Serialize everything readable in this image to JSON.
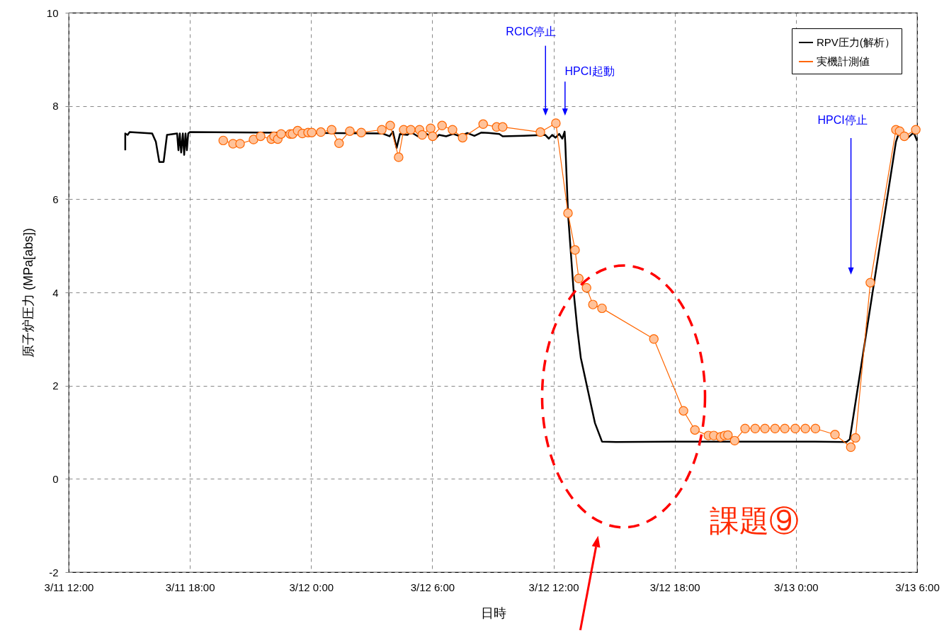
{
  "chart_data": {
    "type": "line",
    "xlabel": "日時",
    "ylabel": "原子炉圧力 (MPa[abs])",
    "xlim": [
      "--03-11T12:00",
      "--03-13T06:00"
    ],
    "xticks": [
      {
        "value": "--03-11T12:00",
        "label": "3/11 12:00"
      },
      {
        "value": "--03-11T18:00",
        "label": "3/11 18:00"
      },
      {
        "value": "--03-12T00:00",
        "label": "3/12 0:00"
      },
      {
        "value": "--03-12T06:00",
        "label": "3/12 6:00"
      },
      {
        "value": "--03-12T12:00",
        "label": "3/12 12:00"
      },
      {
        "value": "--03-12T18:00",
        "label": "3/12 18:00"
      },
      {
        "value": "--03-13T00:00",
        "label": "3/13 0:00"
      },
      {
        "value": "--03-13T06:00",
        "label": "3/13 6:00"
      }
    ],
    "ylim": [
      -2,
      10
    ],
    "yticks": [
      -2,
      0,
      2,
      4,
      6,
      8,
      10
    ],
    "grid": true,
    "legend": "top right",
    "series": [
      {
        "name": "RPV圧力(解析）",
        "color": "#000000",
        "marker": "none",
        "x": [
          "--03-11T14:48",
          "--03-11T14:48",
          "--03-11T14:55",
          "--03-11T15:01",
          "--03-11T16:08",
          "--03-11T16:19",
          "--03-11T16:29",
          "--03-11T16:42",
          "--03-11T16:52",
          "--03-11T17:22",
          "--03-11T17:26",
          "--03-11T17:30",
          "--03-11T17:34",
          "--03-11T17:39",
          "--03-11T17:43",
          "--03-11T17:47",
          "--03-11T17:51",
          "--03-11T17:55",
          "--03-11T18:00",
          "--03-12T03:32",
          "--03-12T03:53",
          "--03-12T04:03",
          "--03-12T04:14",
          "--03-12T04:24",
          "--03-12T04:46",
          "--03-12T04:56",
          "--03-12T05:17",
          "--03-12T05:38",
          "--03-12T06:09",
          "--03-12T06:20",
          "--03-12T06:41",
          "--03-12T07:02",
          "--03-12T07:23",
          "--03-12T07:44",
          "--03-12T08:05",
          "--03-12T08:26",
          "--03-12T08:47",
          "--03-12T09:19",
          "--03-12T09:29",
          "--03-12T10:32",
          "--03-12T11:35",
          "--03-12T11:46",
          "--03-12T11:56",
          "--03-12T12:06",
          "--03-12T12:17",
          "--03-12T12:26",
          "--03-12T12:33",
          "--03-12T12:35",
          "--03-12T12:43",
          "--03-12T13:00",
          "--03-12T13:11",
          "--03-12T13:21",
          "--03-12T13:42",
          "--03-12T14:03",
          "--03-12T14:24",
          "--03-12T15:06",
          "--03-12T17:55",
          "--03-12T21:25",
          "--03-13T00:55",
          "--03-13T02:30",
          "--03-13T02:40",
          "--03-13T04:57",
          "--03-13T05:04",
          "--03-13T05:18",
          "--03-13T05:33",
          "--03-13T05:50",
          "--03-13T06:00"
        ],
        "values": [
          7.05,
          7.41,
          7.38,
          7.44,
          7.41,
          7.23,
          6.8,
          6.8,
          7.38,
          7.41,
          7.05,
          7.41,
          7.0,
          7.41,
          6.95,
          7.41,
          7.05,
          7.41,
          7.44,
          7.41,
          7.35,
          7.45,
          7.1,
          7.4,
          7.38,
          7.44,
          7.35,
          7.42,
          7.3,
          7.38,
          7.35,
          7.4,
          7.35,
          7.42,
          7.36,
          7.43,
          7.42,
          7.4,
          7.35,
          7.36,
          7.38,
          7.3,
          7.38,
          7.32,
          7.4,
          7.3,
          7.45,
          7.2,
          5.7,
          4.0,
          3.2,
          2.6,
          1.9,
          1.2,
          0.8,
          0.79,
          0.8,
          0.8,
          0.8,
          0.79,
          0.85,
          7.23,
          7.38,
          7.45,
          7.32,
          7.43,
          7.25
        ]
      },
      {
        "name": "実機計測値",
        "color": "#ff6600",
        "marker": "circle",
        "x": [
          "--03-11T19:39",
          "--03-11T20:08",
          "--03-11T20:29",
          "--03-11T21:09",
          "--03-11T21:30",
          "--03-11T22:02",
          "--03-11T22:10",
          "--03-11T22:21",
          "--03-11T22:31",
          "--03-11T22:58",
          "--03-11T23:05",
          "--03-11T23:20",
          "--03-11T23:34",
          "--03-11T23:51",
          "--03-12T00:02",
          "--03-12T00:29",
          "--03-12T01:01",
          "--03-12T01:23",
          "--03-12T01:55",
          "--03-12T02:29",
          "--03-12T03:30",
          "--03-12T03:55",
          "--03-12T04:20",
          "--03-12T04:35",
          "--03-12T04:56",
          "--03-12T05:22",
          "--03-12T05:30",
          "--03-12T05:55",
          "--03-12T06:01",
          "--03-12T06:29",
          "--03-12T07:00",
          "--03-12T07:30",
          "--03-12T08:31",
          "--03-12T09:11",
          "--03-12T09:29",
          "--03-12T11:21",
          "--03-12T12:07",
          "--03-12T12:43",
          "--03-12T13:04",
          "--03-12T13:15",
          "--03-12T13:38",
          "--03-12T13:57",
          "--03-12T14:24",
          "--03-12T16:58",
          "--03-12T18:26",
          "--03-12T19:00",
          "--03-12T19:40",
          "--03-12T19:56",
          "--03-12T20:16",
          "--03-12T20:28",
          "--03-12T20:38",
          "--03-12T20:58",
          "--03-12T21:29",
          "--03-12T21:59",
          "--03-12T22:28",
          "--03-12T22:58",
          "--03-12T23:27",
          "--03-12T23:58",
          "--03-13T00:28",
          "--03-13T00:58",
          "--03-13T01:56",
          "--03-13T02:43",
          "--03-13T02:57",
          "--03-13T03:41",
          "--03-13T04:57",
          "--03-13T05:08",
          "--03-13T05:22",
          "--03-13T05:56"
        ],
        "values": [
          7.26,
          7.19,
          7.19,
          7.28,
          7.35,
          7.29,
          7.35,
          7.29,
          7.4,
          7.4,
          7.4,
          7.47,
          7.41,
          7.43,
          7.43,
          7.44,
          7.49,
          7.2,
          7.46,
          7.43,
          7.49,
          7.58,
          6.9,
          7.49,
          7.49,
          7.49,
          7.38,
          7.52,
          7.35,
          7.58,
          7.49,
          7.32,
          7.61,
          7.55,
          7.55,
          7.44,
          7.63,
          5.7,
          4.91,
          4.3,
          4.1,
          3.74,
          3.66,
          3.0,
          1.46,
          1.05,
          0.93,
          0.93,
          0.9,
          0.93,
          0.94,
          0.82,
          1.08,
          1.08,
          1.08,
          1.08,
          1.08,
          1.08,
          1.08,
          1.08,
          0.95,
          0.68,
          0.88,
          4.21,
          7.49,
          7.46,
          7.35,
          7.49
        ]
      }
    ],
    "annotations": [
      "RCIC停止",
      "HPCI起動",
      "HPCI停止",
      "課題⑨"
    ]
  }
}
